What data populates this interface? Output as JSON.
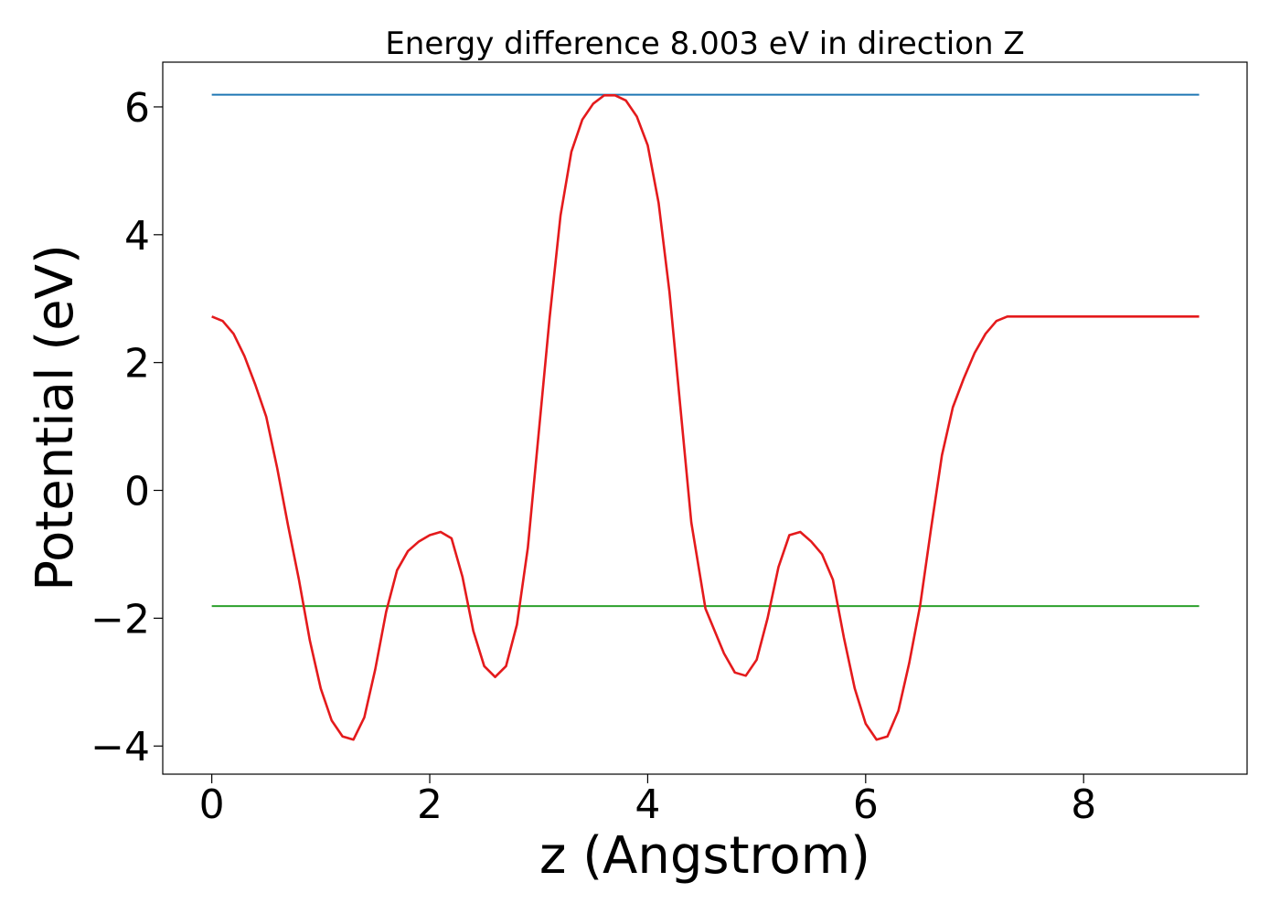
{
  "chart_data": {
    "type": "line",
    "title": "Energy difference 8.003 eV in direction Z",
    "xlabel": "z (Angstrom)",
    "ylabel": "Potential (eV)",
    "xlim": [
      -0.45,
      9.5
    ],
    "ylim": [
      -4.44,
      6.7
    ],
    "xticks": [
      0,
      2,
      4,
      6,
      8
    ],
    "xtick_labels": [
      "0",
      "2",
      "4",
      "6",
      "8"
    ],
    "yticks": [
      -4,
      -2,
      0,
      2,
      4,
      6
    ],
    "ytick_labels": [
      "−4",
      "−2",
      "0",
      "2",
      "4",
      "6"
    ],
    "grid": false,
    "series": [
      {
        "color": "#1f77b4",
        "x": [
          0,
          9.06
        ],
        "y": [
          6.19,
          6.19
        ]
      },
      {
        "color": "#2ca02c",
        "x": [
          0,
          9.06
        ],
        "y": [
          -1.81,
          -1.81
        ]
      },
      {
        "color": "#e41a1c",
        "x": [
          0,
          0.1,
          0.2,
          0.3,
          0.4,
          0.5,
          0.6,
          0.7,
          0.8,
          0.9,
          1.0,
          1.1,
          1.2,
          1.3,
          1.4,
          1.5,
          1.6,
          1.7,
          1.8,
          1.9,
          2.0,
          2.1,
          2.2,
          2.3,
          2.4,
          2.5,
          2.6,
          2.7,
          2.8,
          2.9,
          3.0,
          3.1,
          3.2,
          3.3,
          3.4,
          3.5,
          3.6,
          3.7,
          3.8,
          3.9,
          4.0,
          4.1,
          4.2,
          4.3,
          4.4,
          4.53,
          4.7,
          4.8,
          4.9,
          5.0,
          5.1,
          5.2,
          5.3,
          5.4,
          5.5,
          5.6,
          5.7,
          5.8,
          5.9,
          6.0,
          6.1,
          6.2,
          6.3,
          6.4,
          6.5,
          6.6,
          6.7,
          6.8,
          6.9,
          7.0,
          7.1,
          7.2,
          7.3,
          7.4,
          7.5,
          7.6,
          7.7,
          7.8,
          7.9,
          8.0,
          8.1,
          8.2,
          8.3,
          8.4,
          8.5,
          8.6,
          8.7,
          8.8,
          8.9,
          9.06
        ],
        "y": [
          2.72,
          2.65,
          2.45,
          2.1,
          1.65,
          1.15,
          0.35,
          -0.55,
          -1.4,
          -2.35,
          -3.1,
          -3.6,
          -3.85,
          -3.9,
          -3.55,
          -2.8,
          -1.9,
          -1.25,
          -0.95,
          -0.8,
          -0.7,
          -0.65,
          -0.75,
          -1.35,
          -2.2,
          -2.75,
          -2.92,
          -2.75,
          -2.1,
          -0.9,
          0.9,
          2.7,
          4.3,
          5.3,
          5.8,
          6.05,
          6.18,
          6.18,
          6.1,
          5.85,
          5.4,
          4.5,
          3.1,
          1.3,
          -0.5,
          -1.85,
          -2.55,
          -2.85,
          -2.9,
          -2.65,
          -2.0,
          -1.2,
          -0.7,
          -0.65,
          -0.8,
          -1.0,
          -1.4,
          -2.3,
          -3.1,
          -3.65,
          -3.9,
          -3.85,
          -3.45,
          -2.7,
          -1.8,
          -0.6,
          0.55,
          1.3,
          1.75,
          2.15,
          2.45,
          2.65,
          2.72,
          2.72,
          2.72,
          2.72,
          2.72,
          2.72,
          2.72,
          2.72,
          2.72,
          2.72,
          2.72,
          2.72,
          2.72,
          2.72,
          2.72,
          2.72,
          2.72,
          2.72
        ],
        "note_trimmed": false
      }
    ]
  }
}
